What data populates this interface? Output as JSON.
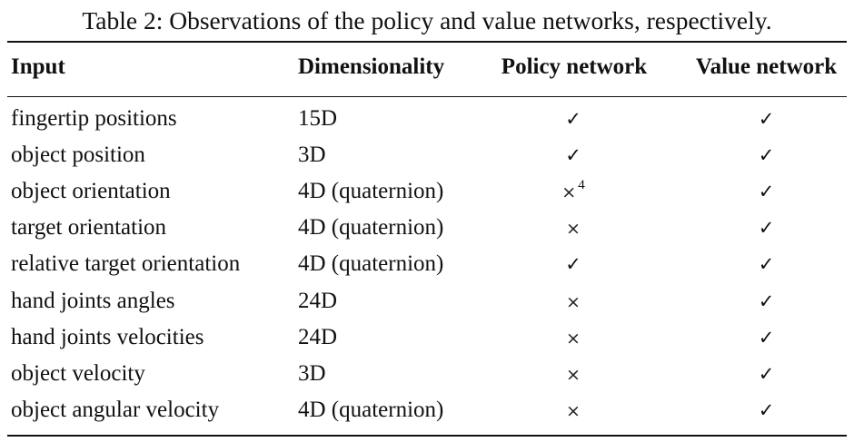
{
  "caption": "Table 2: Observations of the policy and value networks, respectively.",
  "headers": {
    "input": "Input",
    "dimensionality": "Dimensionality",
    "policy": "Policy network",
    "value": "Value network"
  },
  "symbols": {
    "check": "✓",
    "cross": "×"
  },
  "rows": [
    {
      "input": "fingertip positions",
      "dim": "15D",
      "policy": "check",
      "value": "check"
    },
    {
      "input": "object position",
      "dim": "3D",
      "policy": "check",
      "value": "check"
    },
    {
      "input": "object orientation",
      "dim": "4D (quaternion)",
      "policy": "cross",
      "policy_note": "4",
      "value": "check"
    },
    {
      "input": "target orientation",
      "dim": "4D (quaternion)",
      "policy": "cross",
      "value": "check"
    },
    {
      "input": "relative target orientation",
      "dim": "4D (quaternion)",
      "policy": "check",
      "value": "check"
    },
    {
      "input": "hand joints angles",
      "dim": "24D",
      "policy": "cross",
      "value": "check"
    },
    {
      "input": "hand joints velocities",
      "dim": "24D",
      "policy": "cross",
      "value": "check"
    },
    {
      "input": "object velocity",
      "dim": "3D",
      "policy": "cross",
      "value": "check"
    },
    {
      "input": "object angular velocity",
      "dim": "4D (quaternion)",
      "policy": "cross",
      "value": "check"
    }
  ]
}
